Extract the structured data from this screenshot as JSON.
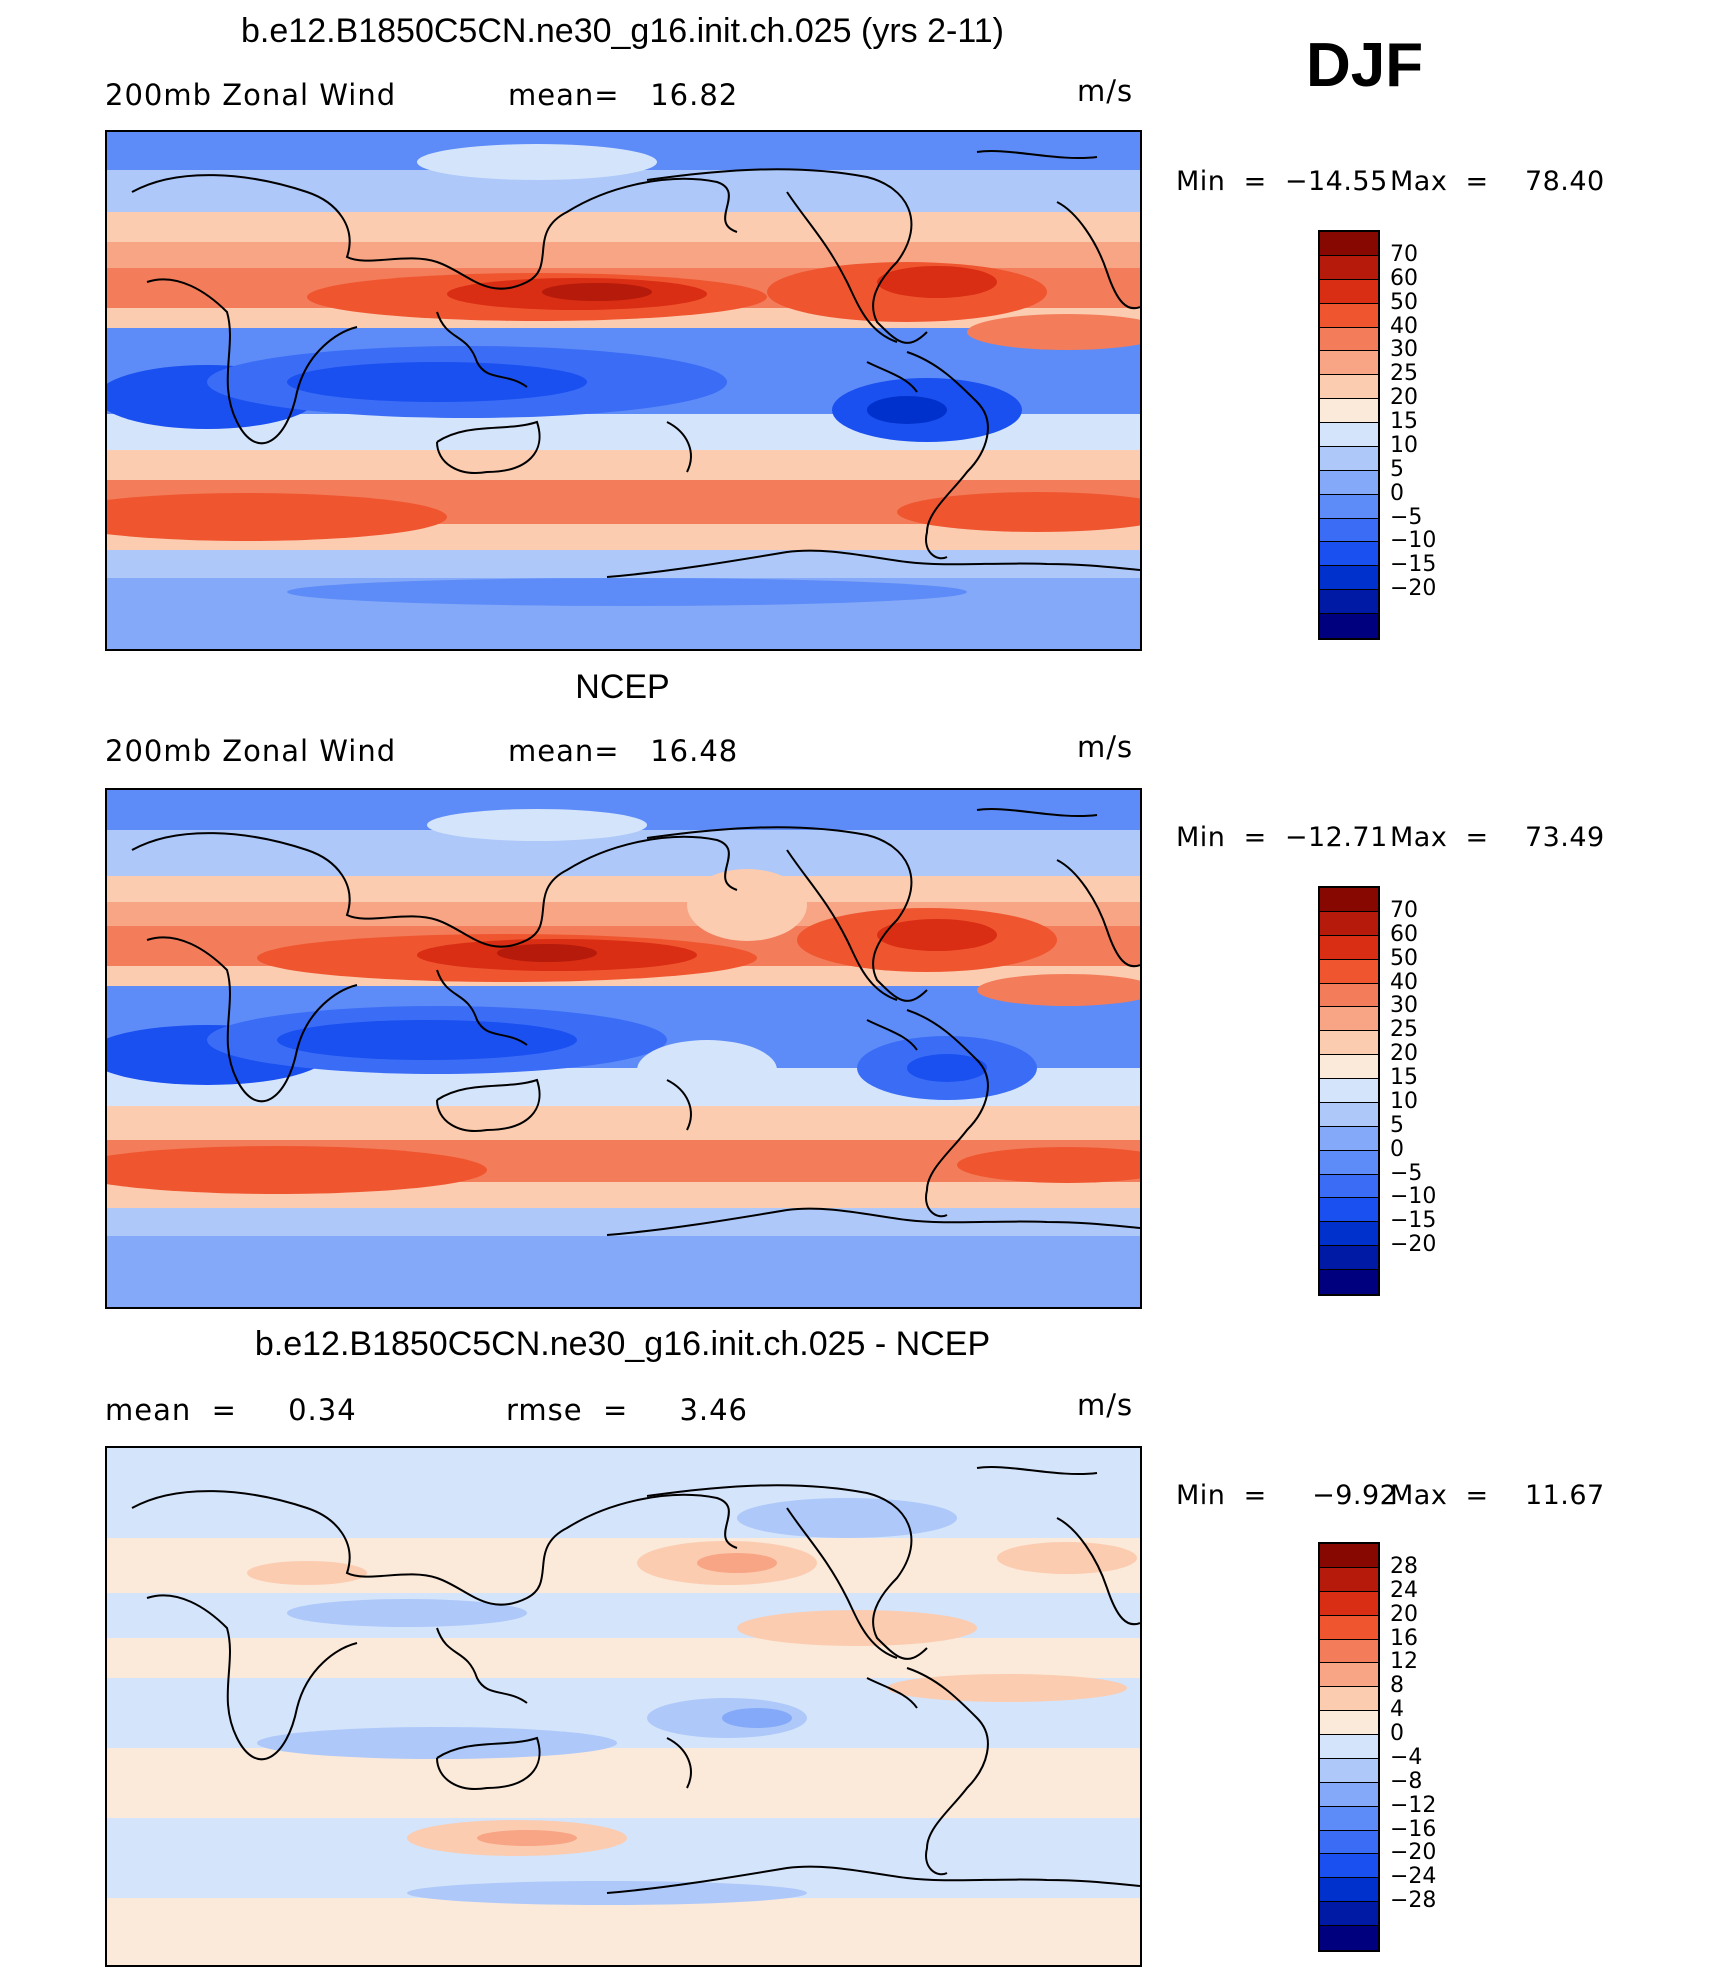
{
  "season": "DJF",
  "colors": {
    "palette": [
      "#00007f",
      "#001aa6",
      "#0031cc",
      "#1a4ff0",
      "#3a6cf6",
      "#5d8bf8",
      "#84a9f8",
      "#adc8f9",
      "#d4e4fb",
      "#fbe9da",
      "#fbccb0",
      "#f7a585",
      "#f37d5a",
      "#ef5630",
      "#d92d14",
      "#b51a0a",
      "#860800"
    ]
  },
  "chart_data": [
    {
      "type": "heatmap",
      "title": "b.e12.B1850C5CN.ne30_g16.init.ch.025 (yrs 2-11)",
      "left_label": "200mb Zonal Wind",
      "center_label": "mean=   16.82",
      "units": "m/s",
      "min_label": "Min  =  −14.55",
      "max_label": "Max  =    78.40",
      "min": -14.55,
      "max": 78.4,
      "mean": 16.82,
      "colorbar_ticks": [
        "70",
        "60",
        "50",
        "40",
        "30",
        "25",
        "20",
        "15",
        "10",
        "5",
        "0",
        "−5",
        "−10",
        "−15",
        "−20"
      ]
    },
    {
      "type": "heatmap",
      "title": "NCEP",
      "left_label": "200mb Zonal Wind",
      "center_label": "mean=   16.48",
      "units": "m/s",
      "min_label": "Min  =  −12.71",
      "max_label": "Max  =    73.49",
      "min": -12.71,
      "max": 73.49,
      "mean": 16.48,
      "colorbar_ticks": [
        "70",
        "60",
        "50",
        "40",
        "30",
        "25",
        "20",
        "15",
        "10",
        "5",
        "0",
        "−5",
        "−10",
        "−15",
        "−20"
      ]
    },
    {
      "type": "heatmap",
      "title": "b.e12.B1850C5CN.ne30_g16.init.ch.025 - NCEP",
      "left_label": "mean  =     0.34",
      "center_label": "rmse  =     3.46",
      "units": "m/s",
      "min_label": "Min  =     −9.92",
      "max_label": "Max  =    11.67",
      "min": -9.92,
      "max": 11.67,
      "mean": 0.34,
      "rmse": 3.46,
      "colorbar_ticks": [
        "28",
        "24",
        "20",
        "16",
        "12",
        "8",
        "4",
        "0",
        "−4",
        "−8",
        "−12",
        "−16",
        "−20",
        "−24",
        "−28"
      ]
    }
  ]
}
